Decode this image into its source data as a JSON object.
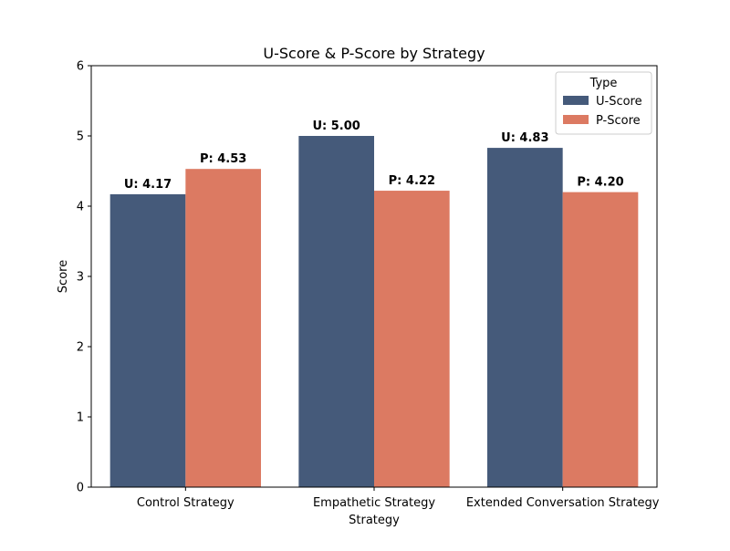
{
  "chart_data": {
    "type": "bar",
    "title": "U-Score & P-Score by Strategy",
    "xlabel": "Strategy",
    "ylabel": "Score",
    "ylim": [
      0,
      6
    ],
    "yticks": [
      0,
      1,
      2,
      3,
      4,
      5,
      6
    ],
    "grid": false,
    "categories": [
      "Control Strategy",
      "Empathetic Strategy",
      "Extended Conversation Strategy"
    ],
    "series": [
      {
        "name": "U-Score",
        "color": "#455a7a",
        "values": [
          4.17,
          5.0,
          4.83
        ],
        "labels": [
          "U: 4.17",
          "U: 5.00",
          "U: 4.83"
        ]
      },
      {
        "name": "P-Score",
        "color": "#dc7a62",
        "values": [
          4.53,
          4.22,
          4.2
        ],
        "labels": [
          "P: 4.53",
          "P: 4.22",
          "P: 4.20"
        ]
      }
    ],
    "legend": {
      "title": "Type",
      "position": "top-right"
    }
  }
}
